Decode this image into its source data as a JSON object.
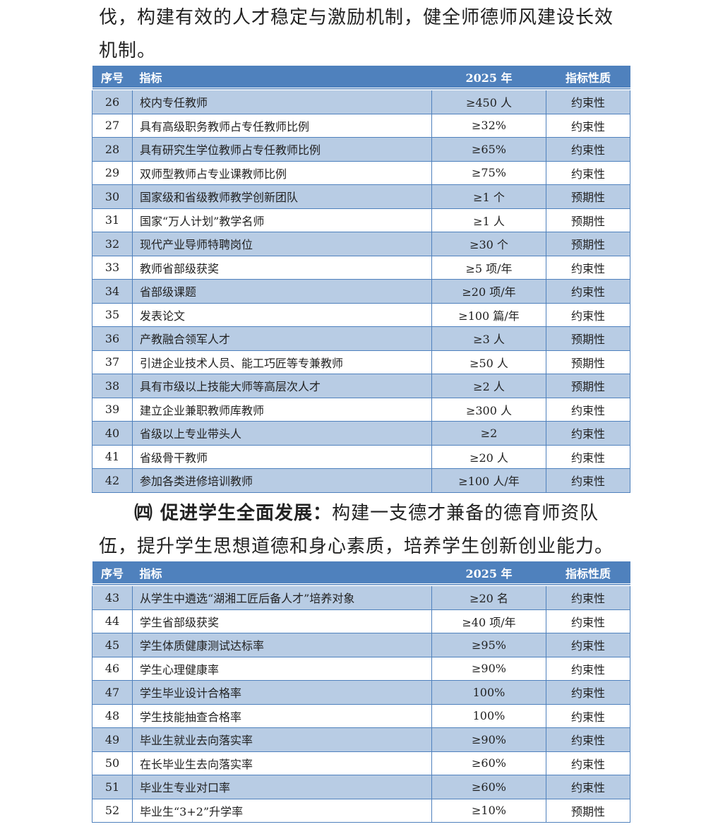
{
  "paragraph_1": "伐，构建有效的人才稳定与激励机制，健全师德师风建设长效机制。",
  "table_1": {
    "header": [
      "序号",
      "指标",
      "2025 年",
      "指标性质"
    ],
    "rows": [
      [
        "26",
        "校内专任教师",
        "≥450 人",
        "约束性"
      ],
      [
        "27",
        "具有高级职务教师占专任教师比例",
        "≥32%",
        "约束性"
      ],
      [
        "28",
        "具有研究生学位教师占专任教师比例",
        "≥65%",
        "约束性"
      ],
      [
        "29",
        "双师型教师占专业课教师比例",
        "≥75%",
        "约束性"
      ],
      [
        "30",
        "国家级和省级教师教学创新团队",
        "≥1 个",
        "预期性"
      ],
      [
        "31",
        "国家“万人计划”教学名师",
        "≥1 人",
        "预期性"
      ],
      [
        "32",
        "现代产业导师特聘岗位",
        "≥30 个",
        "预期性"
      ],
      [
        "33",
        "教师省部级获奖",
        "≥5 项/年",
        "约束性"
      ],
      [
        "34",
        "省部级课题",
        "≥20 项/年",
        "约束性"
      ],
      [
        "35",
        "发表论文",
        "≥100 篇/年",
        "约束性"
      ],
      [
        "36",
        "产教融合领军人才",
        "≥3 人",
        "预期性"
      ],
      [
        "37",
        "引进企业技术人员、能工巧匠等专兼教师",
        "≥50 人",
        "预期性"
      ],
      [
        "38",
        "具有市级以上技能大师等高层次人才",
        "≥2 人",
        "预期性"
      ],
      [
        "39",
        "建立企业兼职教师库教师",
        "≥300 人",
        "约束性"
      ],
      [
        "40",
        "省级以上专业带头人",
        "≥2",
        "约束性"
      ],
      [
        "41",
        "省级骨干教师",
        "≥20 人",
        "约束性"
      ],
      [
        "42",
        "参加各类进修培训教师",
        "≥100 人/年",
        "约束性"
      ]
    ]
  },
  "paragraph_2": {
    "heading": "㈣ 促进学生全面发展：",
    "text": "构建一支德才兼备的德育师资队伍，提升学生思想道德和身心素质，培养学生创新创业能力。"
  },
  "table_2": {
    "header": [
      "序号",
      "指标",
      "2025 年",
      "指标性质"
    ],
    "rows": [
      [
        "43",
        "从学生中遴选“湖湘工匠后备人才”培养对象",
        "≥20 名",
        "约束性"
      ],
      [
        "44",
        "学生省部级获奖",
        "≥40 项/年",
        "约束性"
      ],
      [
        "45",
        "学生体质健康测试达标率",
        "≥95%",
        "约束性"
      ],
      [
        "46",
        "学生心理健康率",
        "≥90%",
        "约束性"
      ],
      [
        "47",
        "学生毕业设计合格率",
        "100%",
        "约束性"
      ],
      [
        "48",
        "学生技能抽查合格率",
        "100%",
        "约束性"
      ],
      [
        "49",
        "毕业生就业去向落实率",
        "≥90%",
        "约束性"
      ],
      [
        "50",
        "在长毕业生去向落实率",
        "≥60%",
        "约束性"
      ],
      [
        "51",
        "毕业生专业对口率",
        "≥60%",
        "约束性"
      ],
      [
        "52",
        "毕业生“3+2”升学率",
        "≥10%",
        "预期性"
      ]
    ]
  }
}
